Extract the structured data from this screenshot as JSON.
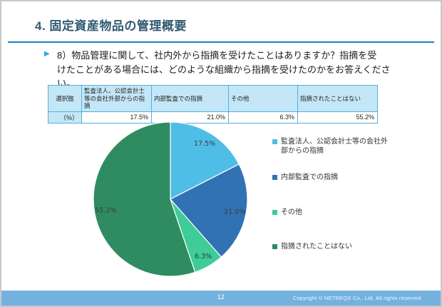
{
  "slide": {
    "title": "4. 固定資産物品の管理概要",
    "bullet_icon": "▶",
    "question_lines": [
      "8）物品管理に関して、社内外から指摘を受けたことはありますか？指摘を受",
      "けたことがある場合には、どのような組織から指摘を受けたのかをお答えください。"
    ]
  },
  "table": {
    "headers": [
      "選択肢",
      "監査法人、公認会計士等の会社外部からの指摘",
      "内部監査での指摘",
      "その他",
      "指摘されたことはない"
    ],
    "row_label": "（%）",
    "values": [
      "17.5%",
      "21.0%",
      "6.3%",
      "55.2%"
    ]
  },
  "chart_data": {
    "type": "pie",
    "categories": [
      "監査法人、公認会計士等の会社外部からの指摘",
      "内部監査での指摘",
      "その他",
      "指摘されたことはない"
    ],
    "values": [
      17.5,
      21.0,
      6.3,
      55.2
    ],
    "labels": [
      "17.5%",
      "21.0%",
      "6.3%",
      "55.2%"
    ],
    "colors": [
      "#4FBEE7",
      "#3172B5",
      "#3ECC98",
      "#2F8C61"
    ],
    "start_angle_deg": 0,
    "direction": "clockwise",
    "legend_position": "right",
    "label_color": "#3C3C3C"
  },
  "footer": {
    "page_number": "12",
    "copyright": "Copyright © NETREQS Co., Ltd. All rights reserved."
  },
  "theme": {
    "title_color": "#315A72",
    "rule_color": "#1B7FC3",
    "bullet_color": "#29A9E1",
    "table_border": "#55AEDC",
    "table_header_bg": "#C4E7F7",
    "footer_bar": "#73B1DE"
  }
}
